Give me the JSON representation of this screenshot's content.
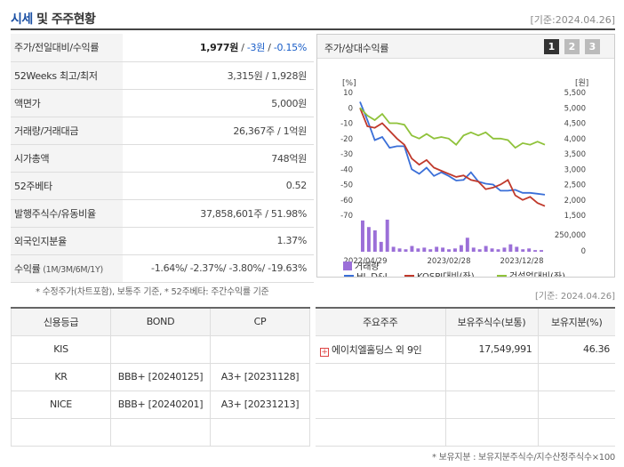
{
  "header": {
    "title_main": "시세",
    "title_rest": " 및 주주현황",
    "date": "[기준:2024.04.26]"
  },
  "quote": {
    "rows": [
      {
        "label": "주가/전일대비/수익률",
        "price": "1,977원",
        "sep1": " / ",
        "change": "-3원",
        "sep2": " / ",
        "rate": "-0.15%"
      },
      {
        "label": "52Weeks 최고/최저",
        "value": "3,315원 / 1,928원"
      },
      {
        "label": "액면가",
        "value": "5,000원"
      },
      {
        "label": "거래량/거래대금",
        "value": "26,367주 / 1억원"
      },
      {
        "label": "시가총액",
        "value": "748억원"
      },
      {
        "label": "52주베타",
        "value": "0.52"
      },
      {
        "label": "발행주식수/유동비율",
        "value": "37,858,601주 / 51.98%"
      },
      {
        "label": "외국인지분율",
        "value": "1.37%"
      },
      {
        "label": "수익률",
        "label_small": " (1M/3M/6M/1Y)",
        "value": "-1.64%/ -2.37%/ -3.80%/ -19.63%"
      }
    ],
    "note": "* 수정주가(차트포함), 보통주 기준, * 52주베타: 주간수익률 기준"
  },
  "chart_panel": {
    "title": "주가/상대수익률",
    "pages": [
      "1",
      "2",
      "3"
    ],
    "left_unit": "[%]",
    "right_unit": "[원]",
    "legend": {
      "s1": "HL D&I",
      "s2": "KOSPI대비(좌)",
      "s3": "건설업대비(좌)",
      "s4": "거래량"
    }
  },
  "chart_data": {
    "type": "line",
    "x_ticks": [
      "2022/04/29",
      "2023/02/28",
      "2023/12/28"
    ],
    "y_left_ticks": [
      10,
      0,
      -10,
      -20,
      -30,
      -40,
      -50,
      -60,
      -70
    ],
    "y_left_range": [
      -70,
      10
    ],
    "y_right_ticks": [
      "5,500",
      "5,000",
      "4,500",
      "4,000",
      "3,500",
      "3,000",
      "2,500",
      "2,000",
      "1,500"
    ],
    "y_right_range": [
      1500,
      5500
    ],
    "volume_tick": "250,000",
    "volume_range": [
      0,
      400000
    ],
    "series": [
      {
        "name": "HL D&I",
        "axis": "right",
        "color": "#3a6fd8",
        "values": [
          5200,
          4600,
          3950,
          4050,
          3700,
          3750,
          3750,
          3000,
          2850,
          3050,
          2780,
          2900,
          2780,
          2630,
          2650,
          2900,
          2600,
          2530,
          2500,
          2300,
          2300,
          2330,
          2230,
          2230,
          2200,
          2170
        ]
      },
      {
        "name": "KOSPI대비(좌)",
        "axis": "left",
        "color": "#c0392b",
        "values": [
          0,
          -12,
          -13,
          -10,
          -15,
          -20,
          -24,
          -33,
          -37,
          -34,
          -39,
          -41,
          -43,
          -45,
          -44,
          -47,
          -48,
          -53,
          -52,
          -50,
          -47,
          -57,
          -60,
          -58,
          -62,
          -64
        ]
      },
      {
        "name": "건설업대비(좌)",
        "axis": "left",
        "color": "#8fc23a",
        "values": [
          0,
          -5,
          -8,
          -4,
          -10,
          -10,
          -11,
          -18,
          -20,
          -17,
          -20,
          -19,
          -20,
          -24,
          -18,
          -16,
          -18,
          -16,
          -20,
          -20,
          -21,
          -26,
          -23,
          -24,
          -22,
          -24
        ]
      },
      {
        "name": "거래량",
        "type": "bar",
        "color": "#9b6fd8",
        "values": [
          380000,
          300000,
          260000,
          120000,
          390000,
          60000,
          40000,
          30000,
          70000,
          40000,
          50000,
          30000,
          60000,
          50000,
          30000,
          40000,
          80000,
          170000,
          50000,
          30000,
          70000,
          40000,
          30000,
          50000,
          90000,
          60000,
          30000,
          40000,
          20000,
          20000
        ]
      }
    ]
  },
  "panel_date": "[기준: 2024.04.26]",
  "credit": {
    "headers": [
      "신용등급",
      "BOND",
      "CP"
    ],
    "rows": [
      [
        "KIS",
        "",
        ""
      ],
      [
        "KR",
        "BBB+ [20240125]",
        "A3+ [20231128]"
      ],
      [
        "NICE",
        "BBB+ [20240201]",
        "A3+ [20231213]"
      ],
      [
        "",
        "",
        ""
      ]
    ]
  },
  "holders": {
    "headers": [
      "주요주주",
      "보유주식수(보통)",
      "보유지분(%)"
    ],
    "rows": [
      {
        "name": "에이치엘홀딩스 외 9인",
        "shares": "17,549,991",
        "pct": "46.36"
      }
    ],
    "note": "* 보유지분 : 보유지분주식수/지수산정주식수×100"
  }
}
